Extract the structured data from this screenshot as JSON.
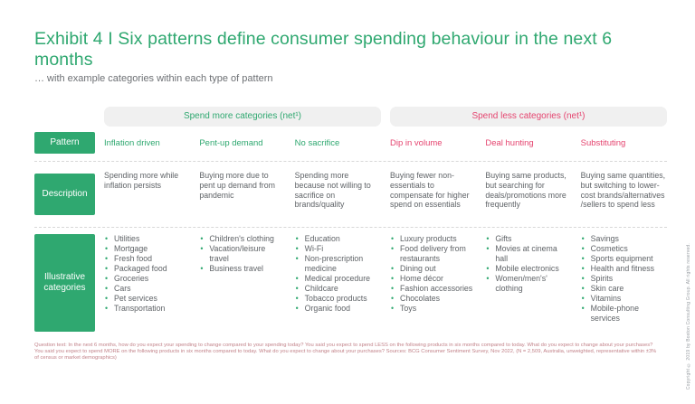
{
  "page": {
    "title": "Exhibit 4 I Six patterns define consumer spending behaviour in the next 6 months",
    "subtitle": "… with example categories within each type of pattern",
    "footnote": "Question text: In the next 6 months, how do you expect your spending to change compared to your spending today? You said you expect to spend LESS on the following products in six months compared to today. What do you expect to change about your purchases? You said you expect to spend MORE on the following products in six months compared to today. What do you expect to change about your purchases? Sources: BCG Consumer Sentiment Survey, Nov 2022, (N = 2,509, Australia,  unweighted, representative within ±3% of census or market demographics)",
    "copyright": "Copyright © 2019 by Boston Consulting Group. All rights reserved."
  },
  "colors": {
    "green": "#2fa870",
    "red": "#e5446f",
    "band_bg": "#f0f0f0",
    "text": "#5f6367",
    "footnote": "#c28289"
  },
  "groups": [
    {
      "label": "Spend more categories (net¹)",
      "tone": "green"
    },
    {
      "label": "Spend less categories (net¹)",
      "tone": "red"
    }
  ],
  "row_labels": {
    "pattern": "Pattern",
    "description": "Description",
    "categories": "Illustrative categories"
  },
  "columns": [
    {
      "pattern": "Inflation driven",
      "group": 0,
      "description": "Spending more while inflation persists",
      "items": [
        "Utilities",
        "Mortgage",
        "Fresh food",
        "Packaged food",
        "Groceries",
        "Cars",
        "Pet services",
        "Transportation"
      ]
    },
    {
      "pattern": "Pent-up demand",
      "group": 0,
      "description": "Buying more due to pent up demand from pandemic",
      "items": [
        "Children's clothing",
        "Vacation/leisure travel",
        "Business travel"
      ]
    },
    {
      "pattern": "No sacrifice",
      "group": 0,
      "description": "Spending more because not willing to sacrifice on brands/quality",
      "items": [
        "Education",
        "Wi-Fi",
        "Non-prescription medicine",
        "Medical procedure",
        "Childcare",
        "Tobacco products",
        "Organic food"
      ]
    },
    {
      "pattern": "Dip in volume",
      "group": 1,
      "description": "Buying fewer non-essentials to compensate for higher spend on essentials",
      "items": [
        "Luxury products",
        "Food delivery from restaurants",
        "Dining out",
        "Home décor",
        "Fashion accessories",
        "Chocolates",
        "Toys"
      ]
    },
    {
      "pattern": "Deal hunting",
      "group": 1,
      "description": "Buying same products, but searching for deals/promotions more frequently",
      "items": [
        "Gifts",
        "Movies at cinema hall",
        "Mobile electronics",
        "Women/men's' clothing"
      ]
    },
    {
      "pattern": "Substituting",
      "group": 1,
      "description": "Buying same quantities, but switching to lower-cost brands/alternatives /sellers to spend less",
      "items": [
        "Savings",
        "Cosmetics",
        "Sports equipment",
        "Health and fitness",
        "Spirits",
        "Skin care",
        "Vitamins",
        "Mobile-phone services"
      ]
    }
  ]
}
